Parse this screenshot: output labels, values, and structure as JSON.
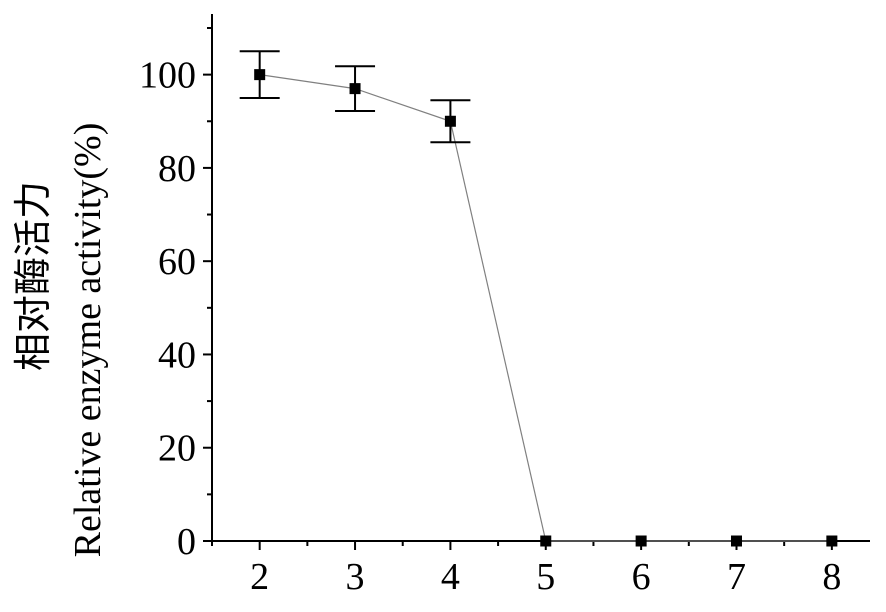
{
  "chart_data": {
    "type": "line",
    "title": "",
    "xlabel": "",
    "ylabel": "Relative enzyme activity(%)",
    "ylabel_cn": "相对酶活力",
    "x": [
      2,
      3,
      4,
      5,
      6,
      7,
      8
    ],
    "series": [
      {
        "values": [
          100,
          97,
          90,
          0,
          0,
          0,
          0
        ],
        "errors": [
          5,
          4.8,
          4.5,
          0,
          0,
          0,
          0
        ]
      }
    ],
    "xlim": [
      1.5,
      8.4
    ],
    "ylim": [
      0,
      113
    ],
    "x_ticks": [
      "2",
      "3",
      "4",
      "5",
      "6",
      "7",
      "8"
    ],
    "y_ticks": [
      "0",
      "20",
      "40",
      "60",
      "80",
      "100"
    ],
    "grid": false,
    "legend": "none",
    "colors": {
      "line": "#808080",
      "marker": "#000000",
      "axis": "#000000"
    }
  }
}
